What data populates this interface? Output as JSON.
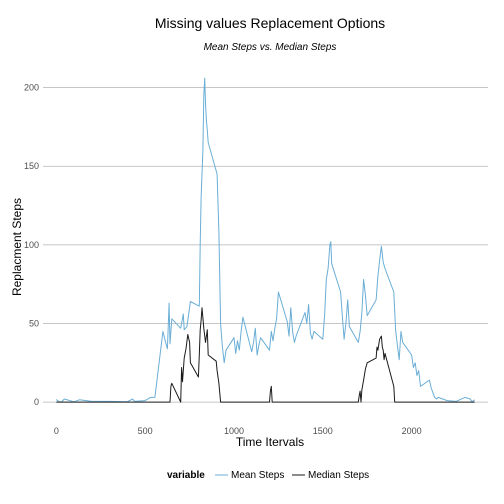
{
  "chart_data": {
    "type": "line",
    "title": "Missing values Replacement Options",
    "subtitle": "Mean Steps vs. Median Steps",
    "xlabel": "Time Itervals",
    "ylabel": "Replacment Steps",
    "xlim": [
      -75,
      2430
    ],
    "ylim": [
      -5,
      215
    ],
    "x_ticks": [
      0,
      500,
      1000,
      1500,
      2000
    ],
    "y_ticks": [
      0,
      50,
      100,
      150,
      200
    ],
    "grid": "horizontal",
    "legend": {
      "title": "variable",
      "placement": "bottom",
      "entries": [
        "Mean Steps",
        "Median Steps"
      ]
    },
    "series": [
      {
        "name": "Mean Steps",
        "color": "#6aaed6",
        "points": [
          [
            0,
            1.7
          ],
          [
            15,
            0.3
          ],
          [
            30,
            0.1
          ],
          [
            45,
            2
          ],
          [
            100,
            0.2
          ],
          [
            130,
            1.5
          ],
          [
            200,
            0.5
          ],
          [
            300,
            0.5
          ],
          [
            400,
            0.3
          ],
          [
            430,
            2
          ],
          [
            440,
            0.5
          ],
          [
            500,
            1
          ],
          [
            530,
            3
          ],
          [
            555,
            3
          ],
          [
            600,
            45
          ],
          [
            615,
            38
          ],
          [
            625,
            34
          ],
          [
            635,
            63
          ],
          [
            640,
            37
          ],
          [
            650,
            53
          ],
          [
            700,
            47
          ],
          [
            715,
            56
          ],
          [
            720,
            46
          ],
          [
            735,
            48
          ],
          [
            740,
            52
          ],
          [
            755,
            64
          ],
          [
            805,
            61
          ],
          [
            810,
            100
          ],
          [
            815,
            130
          ],
          [
            825,
            160
          ],
          [
            830,
            195
          ],
          [
            835,
            206
          ],
          [
            840,
            190
          ],
          [
            845,
            179
          ],
          [
            850,
            173
          ],
          [
            855,
            165
          ],
          [
            905,
            145
          ],
          [
            915,
            108
          ],
          [
            925,
            50
          ],
          [
            935,
            35
          ],
          [
            945,
            25
          ],
          [
            955,
            33
          ],
          [
            1000,
            41
          ],
          [
            1010,
            31
          ],
          [
            1020,
            39
          ],
          [
            1030,
            33
          ],
          [
            1040,
            45
          ],
          [
            1050,
            54
          ],
          [
            1100,
            32
          ],
          [
            1110,
            38
          ],
          [
            1120,
            47
          ],
          [
            1130,
            30
          ],
          [
            1140,
            36
          ],
          [
            1150,
            41
          ],
          [
            1200,
            33
          ],
          [
            1210,
            45
          ],
          [
            1220,
            39
          ],
          [
            1230,
            47
          ],
          [
            1240,
            53
          ],
          [
            1250,
            70
          ],
          [
            1300,
            51
          ],
          [
            1310,
            42
          ],
          [
            1320,
            60
          ],
          [
            1330,
            45
          ],
          [
            1340,
            38
          ],
          [
            1350,
            42
          ],
          [
            1400,
            57
          ],
          [
            1410,
            50
          ],
          [
            1420,
            62
          ],
          [
            1430,
            44
          ],
          [
            1440,
            40
          ],
          [
            1450,
            45
          ],
          [
            1500,
            40
          ],
          [
            1510,
            55
          ],
          [
            1520,
            78
          ],
          [
            1530,
            85
          ],
          [
            1540,
            100
          ],
          [
            1545,
            102
          ],
          [
            1550,
            88
          ],
          [
            1600,
            70
          ],
          [
            1610,
            55
          ],
          [
            1620,
            40
          ],
          [
            1630,
            50
          ],
          [
            1640,
            65
          ],
          [
            1650,
            48
          ],
          [
            1700,
            38
          ],
          [
            1710,
            45
          ],
          [
            1720,
            57
          ],
          [
            1730,
            78
          ],
          [
            1740,
            68
          ],
          [
            1750,
            55
          ],
          [
            1800,
            65
          ],
          [
            1810,
            80
          ],
          [
            1820,
            90
          ],
          [
            1830,
            99
          ],
          [
            1840,
            89
          ],
          [
            1850,
            85
          ],
          [
            1900,
            70
          ],
          [
            1910,
            46
          ],
          [
            1920,
            36
          ],
          [
            1930,
            27
          ],
          [
            1940,
            45
          ],
          [
            1950,
            38
          ],
          [
            2000,
            30
          ],
          [
            2010,
            22
          ],
          [
            2020,
            25
          ],
          [
            2030,
            17
          ],
          [
            2040,
            20
          ],
          [
            2050,
            10
          ],
          [
            2100,
            14
          ],
          [
            2110,
            9
          ],
          [
            2120,
            6
          ],
          [
            2130,
            3
          ],
          [
            2140,
            2
          ],
          [
            2150,
            3
          ],
          [
            2200,
            1
          ],
          [
            2250,
            0.5
          ],
          [
            2300,
            3
          ],
          [
            2330,
            2
          ],
          [
            2340,
            0.3
          ],
          [
            2355,
            1.5
          ]
        ]
      },
      {
        "name": "Median Steps",
        "color": "#1a1a1a",
        "points": [
          [
            0,
            0
          ],
          [
            600,
            0
          ],
          [
            640,
            0
          ],
          [
            645,
            10
          ],
          [
            650,
            12
          ],
          [
            700,
            0
          ],
          [
            705,
            22
          ],
          [
            710,
            13
          ],
          [
            720,
            28
          ],
          [
            730,
            34
          ],
          [
            740,
            43
          ],
          [
            750,
            38
          ],
          [
            755,
            25
          ],
          [
            800,
            16
          ],
          [
            805,
            30
          ],
          [
            810,
            46
          ],
          [
            815,
            52
          ],
          [
            820,
            60
          ],
          [
            830,
            47
          ],
          [
            840,
            38
          ],
          [
            850,
            46
          ],
          [
            855,
            30
          ],
          [
            900,
            26
          ],
          [
            905,
            20
          ],
          [
            915,
            12
          ],
          [
            925,
            0
          ],
          [
            1200,
            0
          ],
          [
            1205,
            7
          ],
          [
            1210,
            10
          ],
          [
            1215,
            0
          ],
          [
            1700,
            0
          ],
          [
            1705,
            4
          ],
          [
            1710,
            7
          ],
          [
            1715,
            0
          ],
          [
            1720,
            8
          ],
          [
            1730,
            14
          ],
          [
            1740,
            21
          ],
          [
            1750,
            25
          ],
          [
            1800,
            28
          ],
          [
            1805,
            35
          ],
          [
            1810,
            33
          ],
          [
            1820,
            40
          ],
          [
            1830,
            42
          ],
          [
            1835,
            35
          ],
          [
            1840,
            33
          ],
          [
            1845,
            27
          ],
          [
            1850,
            31
          ],
          [
            1900,
            10
          ],
          [
            1905,
            0
          ],
          [
            2355,
            0
          ]
        ]
      }
    ]
  }
}
